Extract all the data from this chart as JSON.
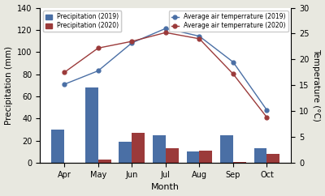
{
  "months": [
    "Apr",
    "May",
    "Jun",
    "Jul",
    "Aug",
    "Sep",
    "Oct"
  ],
  "precip_2019": [
    30,
    68,
    19,
    25,
    10,
    25,
    13
  ],
  "precip_2020": [
    0,
    3,
    27,
    13,
    11,
    1,
    8
  ],
  "temp_2019": [
    15.2,
    17.8,
    23.2,
    26.0,
    24.5,
    19.5,
    10.2
  ],
  "temp_2020": [
    17.5,
    22.2,
    23.5,
    25.2,
    24.0,
    17.2,
    8.8
  ],
  "bar_color_2019": "#4A6FA5",
  "bar_color_2020": "#9B3A3A",
  "line_color_2019": "#4A6FA5",
  "line_color_2020": "#9B3A3A",
  "ylabel_left": "Precipitation (mm)",
  "ylabel_right": "Temperature (°C)",
  "xlabel": "Month",
  "ylim_left": [
    0,
    140
  ],
  "ylim_right": [
    0,
    30
  ],
  "yticks_left": [
    0,
    20,
    40,
    60,
    80,
    100,
    120,
    140
  ],
  "yticks_right": [
    0,
    5,
    10,
    15,
    20,
    25,
    30
  ],
  "legend_precip_2019": "Precipitation (2019)",
  "legend_precip_2020": "Precipitation (2020)",
  "legend_temp_2019": "Average air temperrature (2019)",
  "legend_temp_2020": "Average air temperrature (2020)",
  "background_color": "#ffffff",
  "fig_facecolor": "#e8e8e0"
}
